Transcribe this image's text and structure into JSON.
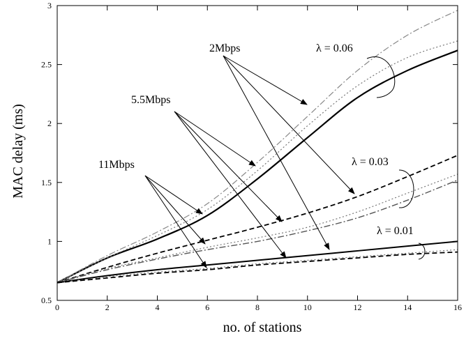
{
  "chart_data": {
    "type": "line",
    "xlabel": "no. of stations",
    "ylabel": "MAC delay (ms)",
    "xlim": [
      0,
      16
    ],
    "ylim": [
      0.5,
      3
    ],
    "xticks": [
      "0",
      "2",
      "4",
      "6",
      "8",
      "10",
      "12",
      "14",
      "16"
    ],
    "yticks": [
      "0.5",
      "1",
      "1.5",
      "2",
      "2.5",
      "3"
    ],
    "grid": false,
    "series": [
      {
        "group": "0.06",
        "style": "solid",
        "color": "#000000",
        "width": 2.2,
        "x": [
          0,
          2,
          4,
          6,
          8,
          10,
          12,
          14,
          16
        ],
        "y": [
          0.65,
          0.86,
          1.02,
          1.22,
          1.53,
          1.88,
          2.22,
          2.45,
          2.62
        ]
      },
      {
        "group": "0.06",
        "style": "dotted",
        "color": "#777777",
        "width": 1.2,
        "x": [
          0,
          2,
          4,
          6,
          8,
          10,
          12,
          14,
          16
        ],
        "y": [
          0.65,
          0.86,
          1.05,
          1.27,
          1.6,
          1.98,
          2.32,
          2.56,
          2.7
        ]
      },
      {
        "group": "0.06",
        "style": "dashdot",
        "color": "#888888",
        "width": 1.2,
        "x": [
          0,
          2,
          4,
          6,
          8,
          10,
          12,
          14,
          16
        ],
        "y": [
          0.65,
          0.88,
          1.08,
          1.32,
          1.67,
          2.06,
          2.45,
          2.75,
          2.96
        ]
      },
      {
        "group": "0.03",
        "style": "dashed",
        "color": "#000000",
        "width": 1.8,
        "x": [
          0,
          2,
          4,
          6,
          8,
          10,
          12,
          14,
          16
        ],
        "y": [
          0.65,
          0.78,
          0.9,
          1.01,
          1.12,
          1.24,
          1.38,
          1.55,
          1.73
        ]
      },
      {
        "group": "0.03",
        "style": "dotted",
        "color": "#777777",
        "width": 1.2,
        "x": [
          0,
          2,
          4,
          6,
          8,
          10,
          12,
          14,
          16
        ],
        "y": [
          0.65,
          0.77,
          0.86,
          0.95,
          1.03,
          1.12,
          1.25,
          1.41,
          1.57
        ]
      },
      {
        "group": "0.03",
        "style": "dashdot",
        "color": "#555555",
        "width": 1.4,
        "x": [
          0,
          2,
          4,
          6,
          8,
          10,
          12,
          14,
          16
        ],
        "y": [
          0.65,
          0.76,
          0.85,
          0.93,
          1.0,
          1.09,
          1.2,
          1.35,
          1.52
        ]
      },
      {
        "group": "0.01",
        "style": "solid",
        "color": "#000000",
        "width": 2.0,
        "x": [
          0,
          2,
          4,
          6,
          8,
          10,
          12,
          14,
          16
        ],
        "y": [
          0.65,
          0.71,
          0.76,
          0.8,
          0.84,
          0.88,
          0.92,
          0.96,
          1.0
        ]
      },
      {
        "group": "0.01",
        "style": "dotted",
        "color": "#777777",
        "width": 1.2,
        "x": [
          0,
          2,
          4,
          6,
          8,
          10,
          12,
          14,
          16
        ],
        "y": [
          0.65,
          0.7,
          0.74,
          0.77,
          0.81,
          0.84,
          0.87,
          0.9,
          0.93
        ]
      },
      {
        "group": "0.01",
        "style": "dashed",
        "color": "#000000",
        "width": 1.8,
        "x": [
          0,
          2,
          4,
          6,
          8,
          10,
          12,
          14,
          16
        ],
        "y": [
          0.65,
          0.69,
          0.73,
          0.76,
          0.8,
          0.83,
          0.86,
          0.89,
          0.91
        ]
      }
    ],
    "annotations": {
      "rate_labels": [
        "2Mbps",
        "5.5Mbps",
        "11Mbps"
      ],
      "lambda_labels": [
        "λ = 0.06",
        "λ = 0.03",
        "λ = 0.01"
      ]
    }
  }
}
